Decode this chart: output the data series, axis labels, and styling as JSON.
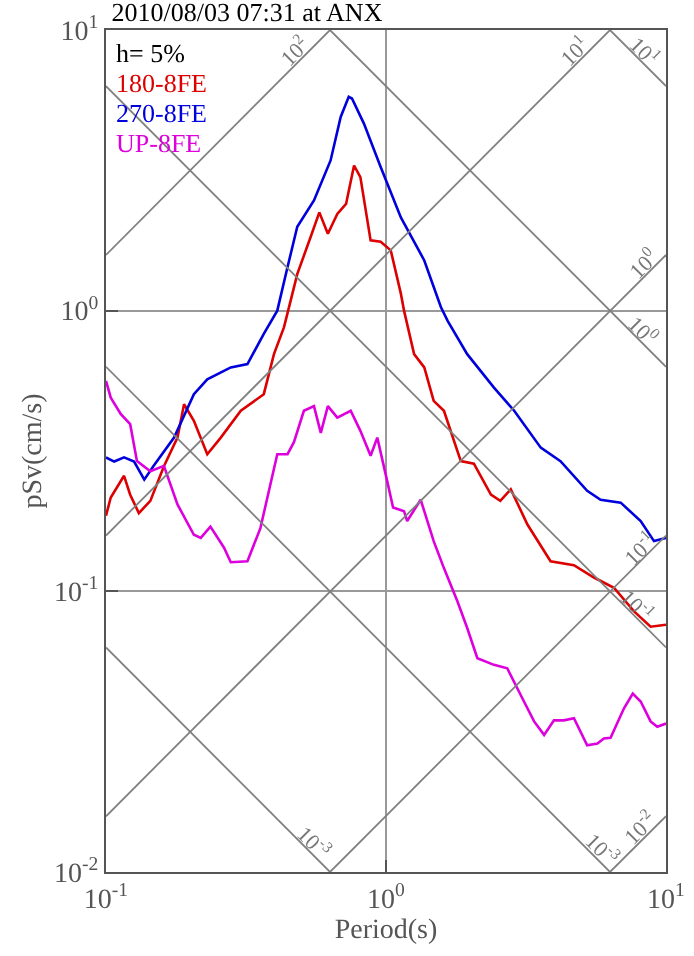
{
  "chart_data": {
    "type": "line",
    "title": "2010/08/03 07:31 at ANX",
    "xlabel": "Period(s)",
    "ylabel": "pSv(cm/s)",
    "log": "xy",
    "grid": true,
    "legend": "top left",
    "xlim": [
      0.1,
      10
    ],
    "xticks": [
      {
        "value": 0.1,
        "label": "10$^{-1}$"
      },
      {
        "value": 1,
        "label": "10$^{0}$"
      },
      {
        "value": 10,
        "label": "10$^{1}$"
      }
    ],
    "ylim": [
      0.01,
      10
    ],
    "yticks": [
      {
        "value": 0.01,
        "label": "10$^{-2}$"
      },
      {
        "value": 0.1,
        "label": "10$^{-1}$"
      },
      {
        "value": 1,
        "label": "10$^{0}$"
      },
      {
        "value": 10,
        "label": "10$^{1}$"
      }
    ],
    "annotations": [
      "h= 5%",
      {
        "text": "10$^{2}$",
        "x": 0.472,
        "y": 7.48
      },
      {
        "text": "10$^{1}$",
        "x": 4.72,
        "y": 7.48
      },
      {
        "text": "10$^{1}$",
        "x": 8.4,
        "y": 7.52
      },
      {
        "text": "10$^{0}$",
        "x": 8.33,
        "y": 1.32
      },
      {
        "text": "10$^{0}$",
        "x": 8.33,
        "y": 0.757
      },
      {
        "text": "10$^{-1}$",
        "x": 8.02,
        "y": 0.127
      },
      {
        "text": "10$^{-1}$",
        "x": 7.88,
        "y": 0.08
      },
      {
        "text": "10$^{-3}$",
        "x": 0.557,
        "y": 0.0113
      },
      {
        "text": "10$^{-3}$",
        "x": 5.9,
        "y": 0.0107
      },
      {
        "text": "10$^{-2}$",
        "x": 8.1,
        "y": 0.0129
      }
    ],
    "series": [
      {
        "name": "180-8FE",
        "color": "#dd0000",
        "x": [
          0.1,
          0.104,
          0.116,
          0.122,
          0.131,
          0.144,
          0.161,
          0.18,
          0.19,
          0.206,
          0.23,
          0.257,
          0.303,
          0.366,
          0.398,
          0.432,
          0.457,
          0.482,
          0.538,
          0.578,
          0.62,
          0.67,
          0.72,
          0.769,
          0.81,
          0.881,
          0.957,
          1.04,
          1.13,
          1.16,
          1.26,
          1.37,
          1.48,
          1.61,
          1.85,
          2.06,
          2.37,
          2.56,
          2.79,
          3.2,
          3.87,
          4.69,
          5.53,
          6.52,
          7.69,
          8.81,
          10
        ],
        "values": [
          0.186,
          0.216,
          0.258,
          0.221,
          0.19,
          0.21,
          0.279,
          0.353,
          0.464,
          0.405,
          0.308,
          0.353,
          0.44,
          0.504,
          0.7,
          0.872,
          1.09,
          1.35,
          1.83,
          2.24,
          1.88,
          2.21,
          2.4,
          3.29,
          2.99,
          1.78,
          1.76,
          1.64,
          1.15,
          1.0,
          0.7,
          0.628,
          0.477,
          0.44,
          0.291,
          0.285,
          0.221,
          0.21,
          0.231,
          0.173,
          0.128,
          0.124,
          0.112,
          0.103,
          0.0848,
          0.0748,
          0.076
        ]
      },
      {
        "name": "270-8FE",
        "color": "#0000dd",
        "x": [
          0.1,
          0.107,
          0.116,
          0.126,
          0.137,
          0.148,
          0.175,
          0.206,
          0.23,
          0.279,
          0.32,
          0.366,
          0.409,
          0.445,
          0.482,
          0.553,
          0.634,
          0.689,
          0.736,
          0.756,
          0.834,
          0.957,
          1.13,
          1.37,
          1.57,
          1.66,
          1.95,
          2.43,
          2.87,
          3.57,
          4.2,
          5.23,
          5.84,
          6.89,
          8.12,
          9.06,
          10
        ],
        "values": [
          0.3,
          0.29,
          0.3,
          0.29,
          0.25,
          0.28,
          0.353,
          0.504,
          0.569,
          0.628,
          0.645,
          0.826,
          1.0,
          1.43,
          1.99,
          2.47,
          3.43,
          4.9,
          5.78,
          5.7,
          4.64,
          3.25,
          2.15,
          1.51,
          1.03,
          0.92,
          0.7,
          0.532,
          0.44,
          0.325,
          0.291,
          0.228,
          0.212,
          0.207,
          0.178,
          0.151,
          0.155
        ]
      },
      {
        "name": "UP-8FE",
        "color": "#dd00dd",
        "x": [
          0.1,
          0.104,
          0.113,
          0.122,
          0.129,
          0.144,
          0.161,
          0.18,
          0.206,
          0.218,
          0.236,
          0.264,
          0.279,
          0.32,
          0.356,
          0.409,
          0.445,
          0.469,
          0.509,
          0.553,
          0.585,
          0.62,
          0.67,
          0.748,
          0.81,
          0.881,
          0.931,
          1.01,
          1.06,
          1.16,
          1.19,
          1.33,
          1.48,
          1.61,
          1.8,
          1.95,
          2.12,
          2.43,
          2.71,
          3.11,
          3.38,
          3.67,
          3.98,
          4.32,
          4.69,
          5.23,
          5.69,
          6.0,
          6.34,
          7.08,
          7.61,
          8.12,
          8.81,
          9.31,
          10
        ],
        "values": [
          0.562,
          0.49,
          0.428,
          0.394,
          0.291,
          0.268,
          0.28,
          0.204,
          0.159,
          0.155,
          0.17,
          0.143,
          0.127,
          0.128,
          0.168,
          0.308,
          0.308,
          0.34,
          0.44,
          0.457,
          0.367,
          0.457,
          0.416,
          0.44,
          0.373,
          0.304,
          0.353,
          0.247,
          0.199,
          0.193,
          0.178,
          0.212,
          0.151,
          0.121,
          0.092,
          0.074,
          0.0578,
          0.0547,
          0.0532,
          0.0405,
          0.0344,
          0.0308,
          0.0347,
          0.0347,
          0.0353,
          0.0283,
          0.0287,
          0.0299,
          0.0301,
          0.0383,
          0.0432,
          0.0405,
          0.0344,
          0.0329,
          0.0338
        ]
      },
      {
        "color": "#808080",
        "x": [
          0.1,
          0.631
        ],
        "values": [
          0.0631,
          0.01
        ]
      },
      {
        "color": "#808080",
        "x": [
          0.1,
          6.31
        ],
        "values": [
          0.631,
          0.01
        ]
      },
      {
        "color": "#808080",
        "x": [
          0.1,
          10
        ],
        "values": [
          6.31,
          0.0631
        ]
      },
      {
        "color": "#808080",
        "x": [
          0.631,
          10
        ],
        "values": [
          10,
          0.631
        ]
      },
      {
        "color": "#808080",
        "x": [
          6.31,
          10
        ],
        "values": [
          10,
          6.31
        ]
      },
      {
        "color": "#808080",
        "x": [
          6.31,
          10
        ],
        "values": [
          0.01,
          0.0158
        ]
      },
      {
        "color": "#808080",
        "x": [
          0.631,
          10
        ],
        "values": [
          0.01,
          0.158
        ]
      },
      {
        "color": "#808080",
        "x": [
          0.1,
          10
        ],
        "values": [
          0.0158,
          1.58
        ]
      },
      {
        "color": "#808080",
        "x": [
          0.1,
          6.31
        ],
        "values": [
          0.158,
          10
        ]
      },
      {
        "color": "#808080",
        "x": [
          0.1,
          0.631
        ],
        "values": [
          1.58,
          10
        ]
      }
    ]
  }
}
